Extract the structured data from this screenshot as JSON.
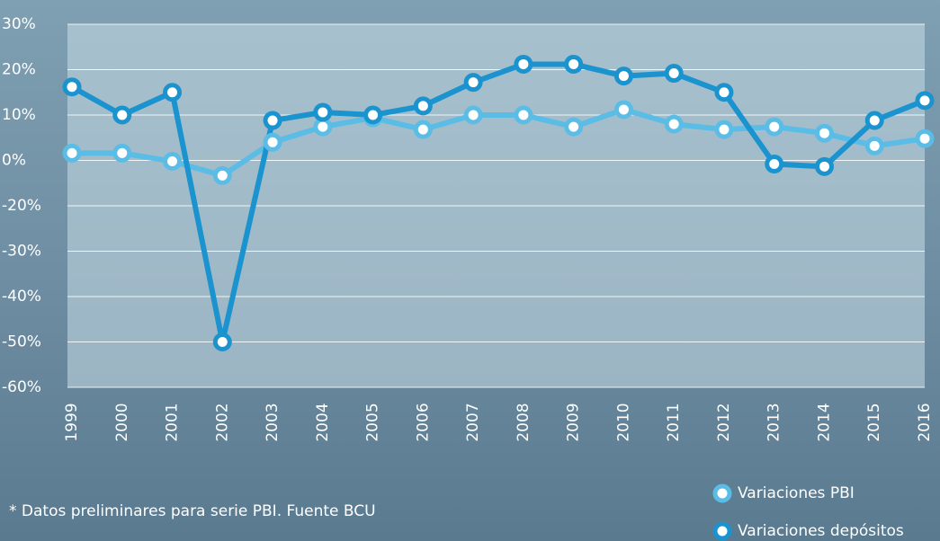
{
  "chart_data": {
    "type": "line",
    "categories": [
      "1999",
      "2000",
      "2001",
      "2002",
      "2003",
      "2004",
      "2005",
      "2006",
      "2007",
      "2008",
      "2009",
      "2010",
      "2011",
      "2012",
      "2013",
      "2014",
      "2015",
      "2016"
    ],
    "series": [
      {
        "name": "Variaciones PBI",
        "color": "#5bbde6",
        "values": [
          1.6,
          1.6,
          -0.4,
          -6.7,
          4,
          7.4,
          9.4,
          6.8,
          10,
          10,
          7.4,
          11.2,
          8,
          6.8,
          7.4,
          6,
          3.2,
          4.8
        ]
      },
      {
        "name": "Variaciones depósitos",
        "color": "#1a93cf",
        "values": [
          16.2,
          10,
          15,
          -50,
          8.8,
          10.6,
          10,
          12,
          17.2,
          21.2,
          21.2,
          18.6,
          19.2,
          15,
          -1.6,
          -2.7,
          8.8,
          13.2
        ]
      }
    ],
    "ylim": [
      -60,
      30
    ],
    "yticks": [
      {
        "value": 30,
        "label": "30%"
      },
      {
        "value": 20,
        "label": "20%"
      },
      {
        "value": 10,
        "label": "10%"
      },
      {
        "value": 0,
        "label": "0%"
      },
      {
        "value": -20,
        "label": "-20%"
      },
      {
        "value": -30,
        "label": "-30%"
      },
      {
        "value": -40,
        "label": "-40%"
      },
      {
        "value": -50,
        "label": "-50%"
      },
      {
        "value": -60,
        "label": "-60%"
      }
    ],
    "grid": true,
    "note": "* Datos preliminares para serie PBI. Fuente BCU",
    "legend": "bottom-right"
  }
}
